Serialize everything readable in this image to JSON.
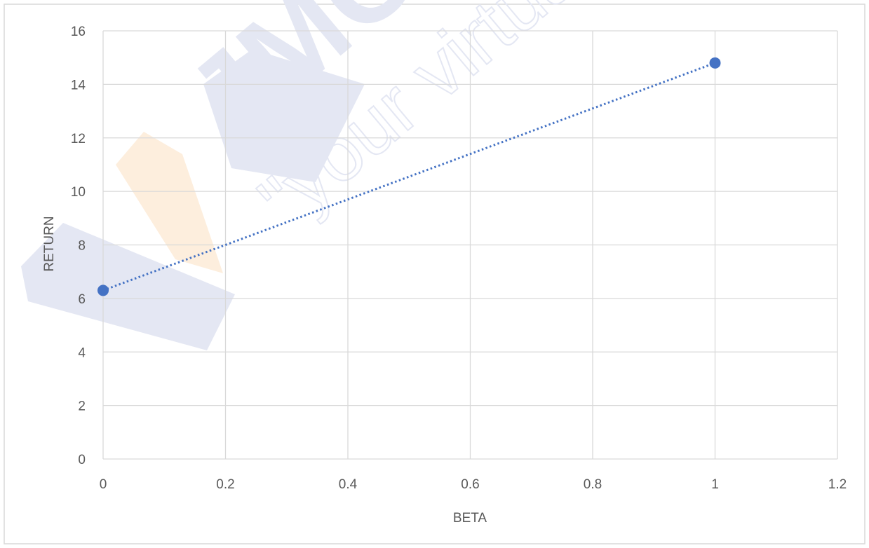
{
  "watermark": {
    "logo_text": "JMC",
    "tagline": "\"your virtual"
  },
  "colors": {
    "series": "#4472c4",
    "grid": "#d9d9d9",
    "text": "#595959",
    "border": "#d9d9d9"
  },
  "chart_data": {
    "type": "scatter",
    "title": "",
    "xlabel": "BETA",
    "ylabel": "RETURN",
    "xlim": [
      0,
      1.2
    ],
    "ylim": [
      0,
      16
    ],
    "x_ticks": [
      "0",
      "0.2",
      "0.4",
      "0.6",
      "0.8",
      "1",
      "1.2"
    ],
    "y_ticks": [
      "0",
      "2",
      "4",
      "6",
      "8",
      "10",
      "12",
      "14",
      "16"
    ],
    "grid": true,
    "legend": "none",
    "series": [
      {
        "points": [
          {
            "x": 0,
            "y": 6.3
          },
          {
            "x": 1,
            "y": 14.8
          }
        ],
        "trendline": "linear, dotted",
        "color": "#4472c4"
      }
    ]
  }
}
